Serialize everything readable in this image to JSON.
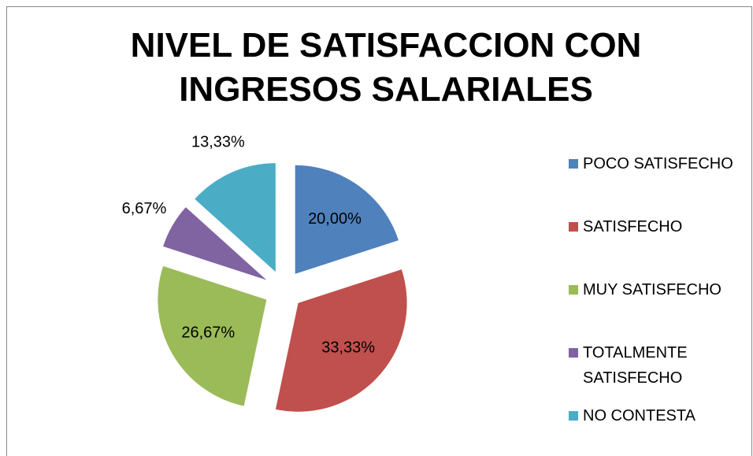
{
  "chart_data": {
    "type": "pie",
    "title": "NIVEL DE SATISFACCION CON INGRESOS SALARIALES",
    "categories": [
      "POCO SATISFECHO",
      "SATISFECHO",
      "MUY SATISFECHO",
      "TOTALMENTE SATISFECHO",
      "NO CONTESTA"
    ],
    "values": [
      20.0,
      33.33,
      26.67,
      6.67,
      13.33
    ],
    "value_labels": [
      "20,00%",
      "33,33%",
      "26,67%",
      "6,67%",
      "13,33%"
    ],
    "colors": [
      "#4f81bd",
      "#c0504d",
      "#9bbb59",
      "#8064a2",
      "#4bacc6"
    ],
    "legend": "right"
  }
}
